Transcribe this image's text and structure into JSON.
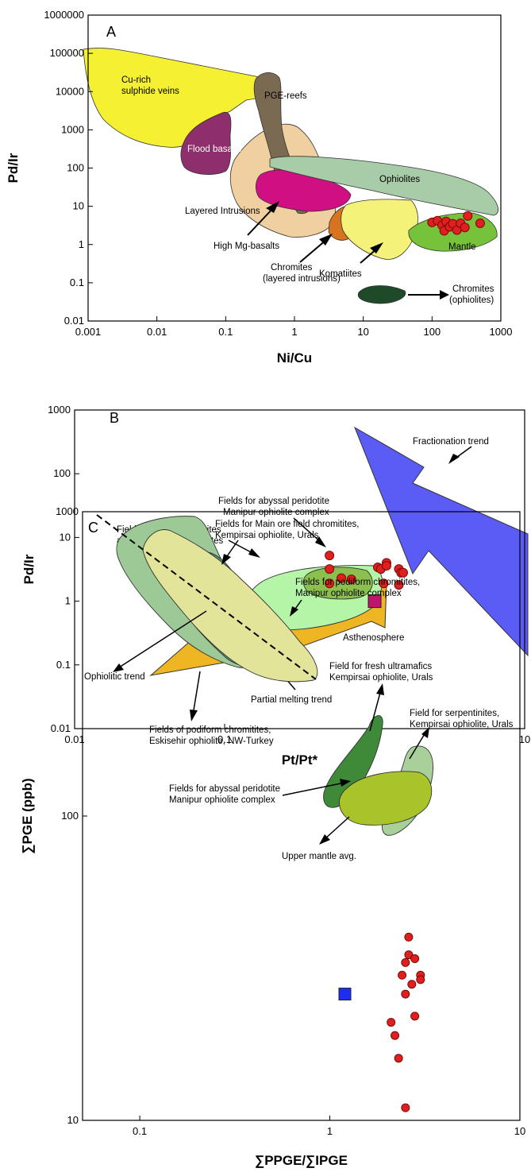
{
  "chart_data": [
    {
      "type": "scatter",
      "panel_label": "A",
      "xlabel": "Ni/Cu",
      "ylabel": "Pd/Ir",
      "xscale": "log",
      "yscale": "log",
      "xlim": [
        0.001,
        1000
      ],
      "ylim": [
        0.01,
        1000000
      ],
      "xticks": [
        "0.001",
        "0.01",
        "0.1",
        "1",
        "10",
        "100",
        "1000"
      ],
      "yticks": [
        "0.01",
        "0.1",
        "1",
        "10",
        "100",
        "1000",
        "10000",
        "100000",
        "1000000"
      ],
      "fields": [
        {
          "name": "Cu-rich sulphide veins",
          "color": "#f5f032"
        },
        {
          "name": "Flood basalts",
          "color": "#8e2e6c"
        },
        {
          "name": "PGE-reefs",
          "color": "#7a6a52"
        },
        {
          "name": "Ophiolites",
          "color": "#a9cca8"
        },
        {
          "name": "Layered Intrusions",
          "color": "#f0cfa0"
        },
        {
          "name": "High Mg-basalts",
          "color": "#cf0f82"
        },
        {
          "name": "Chromites (layered intrusions)",
          "color": "#d8731f"
        },
        {
          "name": "Komatiites",
          "color": "#f5f27a"
        },
        {
          "name": "Mantle",
          "color": "#77c23b"
        },
        {
          "name": "Chromites (ophiolites)",
          "color": "#1f4a2a"
        }
      ],
      "series": [
        {
          "points": [
            [
              100,
              3.8
            ],
            [
              120,
              4.2
            ],
            [
              140,
              3.2
            ],
            [
              150,
              2.3
            ],
            [
              160,
              4.0
            ],
            [
              180,
              2.9
            ],
            [
              200,
              3.5
            ],
            [
              230,
              2.4
            ],
            [
              260,
              3.6
            ],
            [
              300,
              2.8
            ],
            [
              330,
              5.6
            ],
            [
              500,
              3.6
            ]
          ]
        }
      ]
    },
    {
      "type": "scatter",
      "panel_label": "B",
      "xlabel": "Pt/Pt*",
      "ylabel": "Pd/Ir",
      "xscale": "log",
      "yscale": "log",
      "xlim": [
        0.01,
        10
      ],
      "ylim": [
        0.01,
        1000
      ],
      "xticks": [
        "0.01",
        "0.1",
        "1",
        "10"
      ],
      "yticks": [
        "0.01",
        "0.1",
        "1",
        "10",
        "100",
        "1000"
      ],
      "annotations": [
        "Fractionation trend",
        "Fields for abyssal peridotite Manipur ophiolite complex",
        "Field of mantle peridotites and alpine type peridotites",
        "Asthenosphere",
        "Partial melting trend"
      ],
      "series": [
        {
          "marker": "circle",
          "color": "#e01f1f",
          "points": [
            [
              0.5,
              5.2
            ],
            [
              0.5,
              3.2
            ],
            [
              0.5,
              1.9
            ],
            [
              0.6,
              2.3
            ],
            [
              0.7,
              2.2
            ],
            [
              1.05,
              3.4
            ],
            [
              1.1,
              3.2
            ],
            [
              1.2,
              4.0
            ],
            [
              1.15,
              1.9
            ],
            [
              1.2,
              3.6
            ],
            [
              1.45,
              3.2
            ],
            [
              1.5,
              2.8
            ],
            [
              1.55,
              2.8
            ],
            [
              1.45,
              1.8
            ]
          ]
        },
        {
          "name": "Asthenosphere",
          "marker": "square",
          "color": "#c0156e",
          "points": [
            [
              1.0,
              1.0
            ]
          ]
        }
      ]
    },
    {
      "type": "scatter",
      "panel_label": "C",
      "xlabel": "∑PPGE/∑IPGE",
      "ylabel": "∑PGE (ppb)",
      "xscale": "log",
      "yscale": "log",
      "xlim": [
        0.05,
        10
      ],
      "ylim": [
        10,
        1000
      ],
      "xticks": [
        "0.1",
        "1",
        "10"
      ],
      "yticks": [
        "10",
        "100",
        "1000"
      ],
      "annotations": [
        "Fields for Main ore field chromitites, Kempirsai ophiolite, Urals",
        "Fields for podiform chromitites, Manipur ophiolite complex",
        "Field for fresh ultramafics Kempirsai ophiolite, Urals",
        "Field for serpentinites, Kempirsai ophiolite, Urals",
        "Ophiolitic trend",
        "Fields of podiform chromitites, Eskisehir ophiolite, NW-Turkey",
        "Fields for abyssal peridotite Manipur ophiolite complex",
        "Upper mantle avg."
      ],
      "series": [
        {
          "marker": "circle",
          "color": "#e01f1f",
          "points": [
            [
              2.6,
              40
            ],
            [
              2.6,
              35
            ],
            [
              2.5,
              33
            ],
            [
              2.8,
              34
            ],
            [
              2.4,
              30
            ],
            [
              2.7,
              28
            ],
            [
              3.0,
              30
            ],
            [
              3.0,
              29
            ],
            [
              2.5,
              26
            ],
            [
              2.8,
              22
            ],
            [
              2.1,
              21
            ],
            [
              2.2,
              19
            ],
            [
              2.3,
              16
            ],
            [
              2.5,
              11
            ]
          ]
        },
        {
          "name": "Upper mantle avg.",
          "marker": "square",
          "color": "#1e2ef0",
          "points": [
            [
              1.2,
              26
            ]
          ]
        }
      ]
    }
  ]
}
